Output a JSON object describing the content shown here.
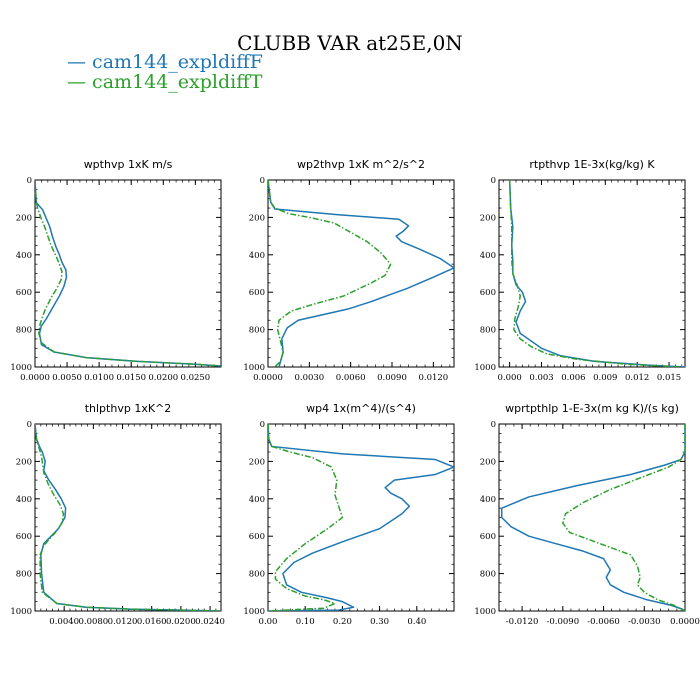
{
  "figure": {
    "title": "CLUBB VAR at25E,0N",
    "legend": [
      {
        "label": "cam144_expldiffF",
        "color": "#1f77b4"
      },
      {
        "label": "cam144_expldiffT",
        "color": "#2ca02c"
      }
    ]
  },
  "chart_data": [
    {
      "type": "line",
      "title": "wpthvp   1xK m/s",
      "xlim": [
        0,
        0.029
      ],
      "ylim": [
        1000,
        0
      ],
      "xticks": [
        0.0,
        0.005,
        0.01,
        0.015,
        0.02,
        0.025
      ],
      "xtick_labels": [
        "0.0000",
        "0.0050",
        "0.0100",
        "0.0150",
        "0.0200",
        "0.0250"
      ],
      "yticks": [
        0,
        200,
        400,
        600,
        800,
        1000
      ],
      "ytick_labels": [
        "0",
        "200",
        "400",
        "600",
        "800",
        "1000"
      ],
      "series": [
        {
          "name": "cam144_expldiffF",
          "color": "#1f77b4",
          "style": "solid",
          "x": [
            0.0,
            0.0002,
            0.0007,
            0.0012,
            0.0023,
            0.0027,
            0.0033,
            0.0038,
            0.0042,
            0.0048,
            0.0049,
            0.0045,
            0.0038,
            0.0028,
            0.0018,
            0.001,
            0.0007,
            0.001,
            0.003,
            0.008,
            0.016,
            0.025,
            0.029
          ],
          "y": [
            0,
            120,
            140,
            160,
            250,
            300,
            360,
            400,
            440,
            480,
            520,
            570,
            620,
            680,
            740,
            780,
            820,
            880,
            920,
            950,
            970,
            985,
            995
          ]
        },
        {
          "name": "cam144_expldiffT",
          "color": "#2ca02c",
          "style": "dashdot",
          "x": [
            0.0,
            0.0002,
            0.0005,
            0.0009,
            0.0015,
            0.002,
            0.0025,
            0.0032,
            0.0038,
            0.0042,
            0.0041,
            0.0034,
            0.0025,
            0.0015,
            0.0008,
            0.0006,
            0.001,
            0.003,
            0.008,
            0.016,
            0.025,
            0.029
          ],
          "y": [
            0,
            120,
            160,
            200,
            250,
            300,
            350,
            400,
            450,
            490,
            530,
            580,
            630,
            700,
            770,
            820,
            870,
            920,
            950,
            970,
            985,
            995
          ]
        }
      ]
    },
    {
      "type": "line",
      "title": "wp2thvp   1xK m^2/s^2",
      "xlim": [
        0,
        0.0135
      ],
      "ylim": [
        1000,
        0
      ],
      "xticks": [
        0.0,
        0.003,
        0.006,
        0.009,
        0.012
      ],
      "xtick_labels": [
        "0.0000",
        "0.0030",
        "0.0060",
        "0.0090",
        "0.0120"
      ],
      "yticks": [
        0,
        200,
        400,
        600,
        800,
        1000
      ],
      "ytick_labels": [
        "0",
        "200",
        "400",
        "600",
        "800",
        "1000"
      ],
      "series": [
        {
          "name": "cam144_expldiffF",
          "color": "#1f77b4",
          "style": "solid",
          "x": [
            0.0,
            0.0002,
            0.0005,
            0.005,
            0.0095,
            0.0102,
            0.0098,
            0.0093,
            0.0097,
            0.011,
            0.0125,
            0.0135,
            0.012,
            0.0101,
            0.0086,
            0.0075,
            0.0058,
            0.004,
            0.0022,
            0.0014,
            0.001,
            0.0011,
            0.0008
          ],
          "y": [
            0,
            120,
            155,
            185,
            210,
            245,
            275,
            300,
            330,
            370,
            420,
            470,
            520,
            580,
            620,
            650,
            690,
            720,
            750,
            790,
            850,
            920,
            1000
          ]
        },
        {
          "name": "cam144_expldiffT",
          "color": "#2ca02c",
          "style": "dashdot",
          "x": [
            0.0,
            0.0002,
            0.0005,
            0.0015,
            0.003,
            0.0048,
            0.006,
            0.0072,
            0.0082,
            0.0089,
            0.0085,
            0.0075,
            0.0055,
            0.0035,
            0.0017,
            0.0008,
            0.0007,
            0.0009,
            0.0011,
            0.0009,
            0.0005
          ],
          "y": [
            0,
            120,
            150,
            180,
            200,
            230,
            280,
            330,
            390,
            450,
            510,
            550,
            620,
            660,
            700,
            750,
            800,
            860,
            920,
            970,
            1000
          ]
        }
      ]
    },
    {
      "type": "line",
      "title": "rtpthvp   1E-3x(kg/kg) K",
      "xlim": [
        -0.001,
        0.0165
      ],
      "ylim": [
        1000,
        0
      ],
      "xticks": [
        0.0,
        0.003,
        0.006,
        0.009,
        0.012,
        0.015
      ],
      "xtick_labels": [
        "0.000",
        "0.003",
        "0.006",
        "0.009",
        "0.012",
        "0.015"
      ],
      "yticks": [
        0,
        200,
        400,
        600,
        800,
        1000
      ],
      "ytick_labels": [
        "0",
        "200",
        "400",
        "600",
        "800",
        "1000"
      ],
      "series": [
        {
          "name": "cam144_expldiffF",
          "color": "#1f77b4",
          "style": "solid",
          "x": [
            0.0,
            0.0001,
            0.0003,
            0.0002,
            0.0003,
            0.0003,
            0.0006,
            0.0012,
            0.0015,
            0.001,
            0.0006,
            0.001,
            0.002,
            0.003,
            0.0048,
            0.008,
            0.013,
            0.0165
          ],
          "y": [
            0,
            150,
            250,
            350,
            430,
            500,
            560,
            600,
            650,
            700,
            760,
            820,
            860,
            900,
            940,
            970,
            990,
            1000
          ]
        },
        {
          "name": "cam144_expldiffT",
          "color": "#2ca02c",
          "style": "dashdot",
          "x": [
            0.0,
            0.0001,
            0.0002,
            0.0002,
            0.0002,
            0.0003,
            0.0007,
            0.001,
            0.0008,
            0.0005,
            0.0004,
            0.001,
            0.002,
            0.0035,
            0.0065,
            0.011,
            0.016
          ],
          "y": [
            0,
            150,
            250,
            350,
            430,
            500,
            560,
            620,
            680,
            740,
            800,
            850,
            890,
            930,
            960,
            985,
            1000
          ]
        }
      ]
    },
    {
      "type": "line",
      "title": "thlpthvp   1xK^2",
      "xlim": [
        0,
        0.0255
      ],
      "ylim": [
        1000,
        0
      ],
      "xticks": [
        0.004,
        0.008,
        0.012,
        0.016,
        0.02,
        0.024
      ],
      "xtick_labels": [
        "0.0040",
        "0.0080",
        "0.0120",
        "0.0160",
        "0.0200",
        "0.0240"
      ],
      "yticks": [
        0,
        200,
        400,
        600,
        800,
        1000
      ],
      "ytick_labels": [
        "0",
        "200",
        "400",
        "600",
        "800",
        "1000"
      ],
      "series": [
        {
          "name": "cam144_expldiffF",
          "color": "#1f77b4",
          "style": "solid",
          "x": [
            0.0,
            0.0002,
            0.0006,
            0.001,
            0.0014,
            0.0012,
            0.0019,
            0.0028,
            0.0036,
            0.0042,
            0.0041,
            0.0032,
            0.0012,
            0.0008,
            0.0009,
            0.0012,
            0.003,
            0.007,
            0.013,
            0.02,
            0.0255
          ],
          "y": [
            0,
            80,
            120,
            150,
            200,
            250,
            300,
            350,
            400,
            450,
            500,
            560,
            640,
            700,
            800,
            900,
            960,
            980,
            990,
            995,
            1000
          ]
        },
        {
          "name": "cam144_expldiffT",
          "color": "#2ca02c",
          "style": "dashdot",
          "x": [
            0.0,
            0.0002,
            0.0005,
            0.0008,
            0.001,
            0.0012,
            0.0018,
            0.0026,
            0.0034,
            0.0039,
            0.0037,
            0.0028,
            0.0012,
            0.0007,
            0.0007,
            0.001,
            0.003,
            0.007,
            0.013,
            0.02,
            0.0255
          ],
          "y": [
            0,
            80,
            120,
            160,
            200,
            260,
            320,
            380,
            430,
            480,
            530,
            580,
            650,
            700,
            800,
            900,
            960,
            980,
            990,
            995,
            1000
          ]
        }
      ]
    },
    {
      "type": "line",
      "title": "wp4   1x(m^4)/(s^4)",
      "xlim": [
        0,
        0.5
      ],
      "ylim": [
        1000,
        0
      ],
      "xticks": [
        0.0,
        0.1,
        0.2,
        0.3,
        0.4
      ],
      "xtick_labels": [
        "0.00",
        "0.10",
        "0.20",
        "0.30",
        "0.40"
      ],
      "yticks": [
        0,
        200,
        400,
        600,
        800,
        1000
      ],
      "ytick_labels": [
        "0",
        "200",
        "400",
        "600",
        "800",
        "1000"
      ],
      "series": [
        {
          "name": "cam144_expldiffF",
          "color": "#1f77b4",
          "style": "solid",
          "x": [
            0.0,
            0.002,
            0.01,
            0.2,
            0.45,
            0.5,
            0.45,
            0.34,
            0.315,
            0.33,
            0.36,
            0.38,
            0.36,
            0.3,
            0.2,
            0.12,
            0.07,
            0.04,
            0.05,
            0.09,
            0.16,
            0.2,
            0.23,
            0.19,
            0.0
          ],
          "y": [
            0,
            80,
            120,
            160,
            190,
            230,
            270,
            300,
            340,
            370,
            400,
            440,
            480,
            560,
            630,
            690,
            740,
            800,
            860,
            900,
            930,
            950,
            980,
            995,
            1000
          ]
        },
        {
          "name": "cam144_expldiffT",
          "color": "#2ca02c",
          "style": "dashdot",
          "x": [
            0.0,
            0.002,
            0.01,
            0.06,
            0.12,
            0.17,
            0.185,
            0.18,
            0.19,
            0.2,
            0.16,
            0.1,
            0.05,
            0.02,
            0.02,
            0.05,
            0.1,
            0.15,
            0.18,
            0.15,
            0.0
          ],
          "y": [
            0,
            80,
            120,
            150,
            180,
            230,
            300,
            380,
            440,
            500,
            560,
            640,
            720,
            790,
            830,
            880,
            920,
            940,
            960,
            985,
            1000
          ]
        }
      ]
    },
    {
      "type": "line",
      "title": "wprtpthlp   1-E-3x(m kg K)/(s kg)",
      "xlim": [
        -0.0137,
        0
      ],
      "ylim": [
        1000,
        0
      ],
      "xticks": [
        -0.012,
        -0.009,
        -0.006,
        -0.003,
        0.0
      ],
      "xtick_labels": [
        "-0.0120",
        "-0.0090",
        "-0.0060",
        "-0.0030",
        "0.0000"
      ],
      "yticks": [
        0,
        200,
        400,
        600,
        800,
        1000
      ],
      "ytick_labels": [
        "0",
        "200",
        "400",
        "600",
        "800",
        "1000"
      ],
      "series": [
        {
          "name": "cam144_expldiffF",
          "color": "#1f77b4",
          "style": "solid",
          "x": [
            0.0,
            0.0,
            -0.0003,
            -0.0015,
            -0.004,
            -0.008,
            -0.0115,
            -0.0135,
            -0.0135,
            -0.0128,
            -0.0115,
            -0.0095,
            -0.0075,
            -0.006,
            -0.0055,
            -0.0058,
            -0.0055,
            -0.0045,
            -0.0028,
            -0.001,
            -0.0002,
            0.0
          ],
          "y": [
            0,
            150,
            190,
            220,
            270,
            330,
            390,
            450,
            500,
            550,
            600,
            640,
            680,
            720,
            780,
            820,
            860,
            900,
            940,
            970,
            990,
            1000
          ]
        },
        {
          "name": "cam144_expldiffT",
          "color": "#2ca02c",
          "style": "dashdot",
          "x": [
            0.0,
            0.0,
            -0.0003,
            -0.0012,
            -0.003,
            -0.0055,
            -0.0075,
            -0.0088,
            -0.009,
            -0.0085,
            -0.007,
            -0.0055,
            -0.004,
            -0.0035,
            -0.0033,
            -0.0035,
            -0.003,
            -0.002,
            -0.0008,
            0.0
          ],
          "y": [
            0,
            150,
            190,
            230,
            280,
            350,
            420,
            480,
            530,
            580,
            620,
            660,
            700,
            760,
            820,
            860,
            900,
            940,
            970,
            1000
          ]
        }
      ]
    }
  ]
}
